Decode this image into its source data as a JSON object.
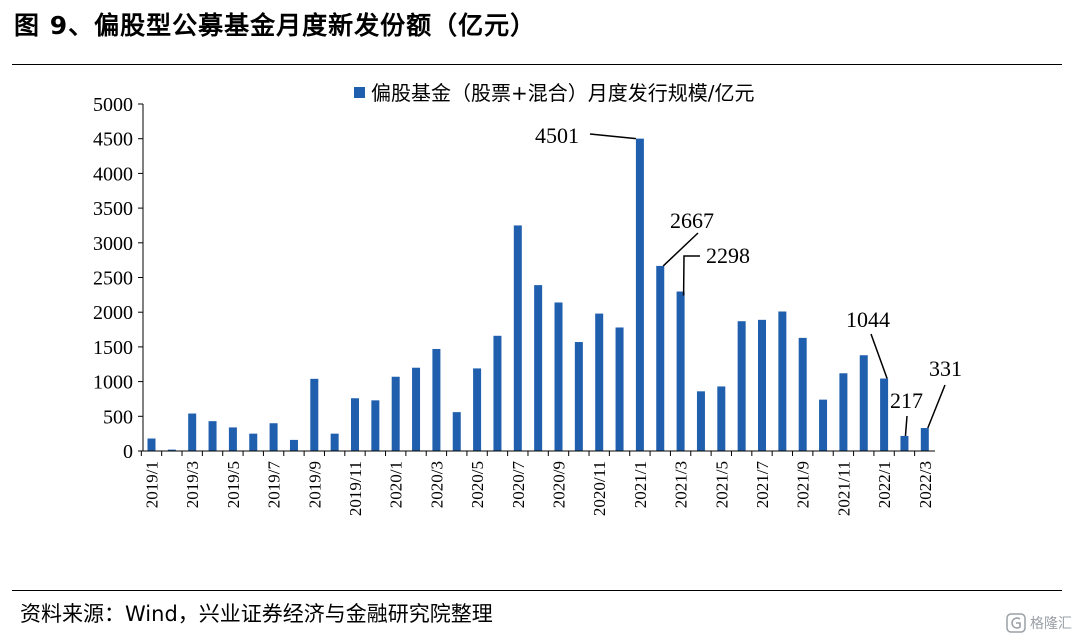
{
  "header": {
    "title": "图 9、偏股型公募基金月度新发份额（亿元）"
  },
  "footer": {
    "source": "资料来源：Wind，兴业证券经济与金融研究院整理"
  },
  "watermark": {
    "text": "格隆汇",
    "icon": "glh-logo-icon"
  },
  "colors": {
    "bar": "#1f5fad",
    "axis": "#000000"
  },
  "chart_data": {
    "type": "bar",
    "title": "图 9、偏股型公募基金月度新发份额（亿元）",
    "xlabel": "",
    "ylabel": "",
    "ylim": [
      0,
      5000
    ],
    "yticks": [
      0,
      500,
      1000,
      1500,
      2000,
      2500,
      3000,
      3500,
      4000,
      4500,
      5000
    ],
    "legend_position": "top",
    "grid": false,
    "categories": [
      "2019/1",
      "2019/2",
      "2019/3",
      "2019/4",
      "2019/5",
      "2019/6",
      "2019/7",
      "2019/8",
      "2019/9",
      "2019/10",
      "2019/11",
      "2019/12",
      "2020/1",
      "2020/2",
      "2020/3",
      "2020/4",
      "2020/5",
      "2020/6",
      "2020/7",
      "2020/8",
      "2020/9",
      "2020/10",
      "2020/11",
      "2020/12",
      "2021/1",
      "2021/2",
      "2021/3",
      "2021/4",
      "2021/5",
      "2021/6",
      "2021/7",
      "2021/8",
      "2021/9",
      "2021/10",
      "2021/11",
      "2021/12",
      "2022/1",
      "2022/2",
      "2022/3"
    ],
    "xtick_labels": [
      "2019/1",
      "2019/3",
      "2019/5",
      "2019/7",
      "2019/9",
      "2019/11",
      "2020/1",
      "2020/3",
      "2020/5",
      "2020/7",
      "2020/9",
      "2020/11",
      "2021/1",
      "2021/3",
      "2021/5",
      "2021/7",
      "2021/9",
      "2021/11",
      "2022/1",
      "2022/3"
    ],
    "series": [
      {
        "name": "偏股基金（股票+混合）月度发行规模/亿元",
        "values": [
          180,
          20,
          540,
          430,
          340,
          250,
          400,
          160,
          1040,
          250,
          760,
          730,
          1070,
          1200,
          1470,
          560,
          1190,
          1660,
          3250,
          2390,
          2140,
          1570,
          1980,
          1780,
          4501,
          2667,
          2298,
          860,
          930,
          1870,
          1890,
          2010,
          1630,
          740,
          1120,
          1380,
          1044,
          217,
          331
        ]
      }
    ],
    "annotations": [
      {
        "category": "2021/1",
        "text": "4501"
      },
      {
        "category": "2021/2",
        "text": "2667"
      },
      {
        "category": "2021/3",
        "text": "2298"
      },
      {
        "category": "2022/1",
        "text": "1044"
      },
      {
        "category": "2022/2",
        "text": "217"
      },
      {
        "category": "2022/3",
        "text": "331"
      }
    ]
  }
}
